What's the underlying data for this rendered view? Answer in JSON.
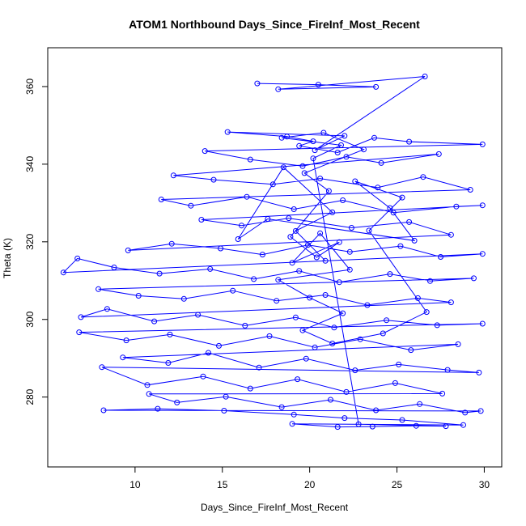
{
  "chart_data": {
    "type": "scatter",
    "title": "ATOM1 Northbound Days_Since_FireInf_Most_Recent",
    "xlabel": "Days_Since_FireInf_Most_Recent",
    "ylabel": "Theta (K)",
    "xlim": [
      5,
      31
    ],
    "ylim": [
      262,
      370
    ],
    "xticks": [
      10,
      15,
      20,
      25,
      30
    ],
    "yticks": [
      280,
      300,
      320,
      340,
      360
    ],
    "grid": false,
    "legend": "none",
    "series_style": "points connected by lines",
    "color": "#0000ff",
    "series": [
      {
        "values_note": "",
        "points": [
          [
            17.0,
            360.8
          ],
          [
            20.5,
            360.5
          ],
          [
            23.8,
            359.9
          ],
          [
            18.2,
            359.3
          ],
          [
            26.6,
            362.6
          ],
          [
            20.3,
            343.6
          ],
          [
            22.0,
            347.3
          ],
          [
            15.3,
            348.3
          ],
          [
            18.7,
            347.1
          ],
          [
            20.2,
            345.9
          ],
          [
            19.4,
            344.7
          ],
          [
            21.6,
            343.0
          ],
          [
            23.7,
            346.8
          ],
          [
            25.7,
            345.8
          ],
          [
            29.9,
            345.1
          ],
          [
            14.0,
            343.4
          ],
          [
            16.6,
            341.2
          ],
          [
            19.6,
            339.5
          ],
          [
            22.1,
            341.9
          ],
          [
            24.1,
            340.3
          ],
          [
            27.4,
            342.6
          ],
          [
            12.2,
            337.1
          ],
          [
            14.5,
            336.0
          ],
          [
            17.9,
            334.8
          ],
          [
            20.6,
            336.3
          ],
          [
            23.9,
            334.0
          ],
          [
            26.5,
            336.7
          ],
          [
            29.2,
            333.4
          ],
          [
            11.5,
            330.9
          ],
          [
            13.2,
            329.3
          ],
          [
            16.4,
            331.6
          ],
          [
            19.1,
            328.4
          ],
          [
            21.9,
            330.7
          ],
          [
            24.8,
            327.5
          ],
          [
            28.4,
            329.1
          ],
          [
            29.9,
            329.4
          ],
          [
            13.8,
            325.7
          ],
          [
            16.1,
            324.2
          ],
          [
            18.8,
            326.1
          ],
          [
            22.4,
            323.6
          ],
          [
            25.7,
            325.1
          ],
          [
            28.1,
            321.8
          ],
          [
            9.6,
            317.8
          ],
          [
            12.1,
            319.5
          ],
          [
            14.9,
            318.3
          ],
          [
            17.3,
            316.7
          ],
          [
            19.9,
            319.2
          ],
          [
            22.3,
            317.4
          ],
          [
            25.2,
            318.9
          ],
          [
            27.5,
            316.1
          ],
          [
            29.9,
            316.9
          ],
          [
            5.9,
            312.1
          ],
          [
            6.7,
            315.7
          ],
          [
            8.8,
            313.4
          ],
          [
            11.4,
            311.8
          ],
          [
            14.3,
            313.0
          ],
          [
            16.8,
            310.4
          ],
          [
            19.4,
            312.5
          ],
          [
            21.7,
            309.6
          ],
          [
            24.6,
            311.7
          ],
          [
            26.9,
            309.9
          ],
          [
            29.4,
            310.6
          ],
          [
            7.9,
            307.8
          ],
          [
            10.2,
            306.1
          ],
          [
            12.8,
            305.3
          ],
          [
            15.6,
            307.4
          ],
          [
            18.1,
            304.8
          ],
          [
            20.9,
            306.3
          ],
          [
            23.3,
            303.7
          ],
          [
            26.2,
            305.5
          ],
          [
            28.1,
            304.4
          ],
          [
            6.9,
            300.6
          ],
          [
            8.4,
            302.7
          ],
          [
            11.1,
            299.5
          ],
          [
            13.6,
            301.2
          ],
          [
            16.3,
            298.4
          ],
          [
            19.2,
            300.5
          ],
          [
            21.4,
            297.9
          ],
          [
            24.4,
            299.8
          ],
          [
            27.3,
            298.5
          ],
          [
            29.9,
            298.9
          ],
          [
            6.8,
            296.7
          ],
          [
            9.5,
            294.6
          ],
          [
            12.0,
            296.1
          ],
          [
            14.8,
            293.2
          ],
          [
            17.7,
            295.7
          ],
          [
            20.3,
            292.8
          ],
          [
            22.9,
            294.9
          ],
          [
            25.8,
            292.1
          ],
          [
            28.5,
            293.6
          ],
          [
            9.3,
            290.2
          ],
          [
            11.9,
            288.8
          ],
          [
            14.2,
            291.4
          ],
          [
            17.1,
            287.6
          ],
          [
            19.8,
            289.9
          ],
          [
            22.6,
            286.9
          ],
          [
            25.1,
            288.4
          ],
          [
            27.9,
            287.0
          ],
          [
            29.7,
            286.3
          ],
          [
            8.1,
            287.7
          ],
          [
            10.7,
            283.1
          ],
          [
            13.9,
            285.3
          ],
          [
            16.6,
            282.2
          ],
          [
            19.3,
            284.6
          ],
          [
            22.1,
            281.3
          ],
          [
            24.9,
            283.6
          ],
          [
            27.6,
            280.9
          ],
          [
            10.8,
            280.8
          ],
          [
            12.4,
            278.6
          ],
          [
            15.2,
            280.1
          ],
          [
            18.4,
            277.4
          ],
          [
            21.2,
            279.3
          ],
          [
            23.8,
            276.6
          ],
          [
            26.3,
            278.2
          ],
          [
            28.9,
            276.0
          ],
          [
            29.8,
            276.4
          ],
          [
            8.2,
            276.6
          ],
          [
            11.3,
            277.0
          ],
          [
            15.1,
            276.5
          ],
          [
            19.1,
            275.5
          ],
          [
            22.0,
            274.6
          ],
          [
            25.3,
            274.1
          ],
          [
            28.8,
            272.8
          ],
          [
            19.0,
            273.1
          ],
          [
            21.6,
            272.3
          ],
          [
            23.6,
            272.4
          ],
          [
            26.1,
            272.6
          ],
          [
            27.8,
            272.5
          ],
          [
            22.8,
            273.0
          ],
          [
            20.2,
            341.5
          ],
          [
            21.8,
            344.9
          ],
          [
            18.4,
            346.8
          ],
          [
            20.8,
            348.1
          ],
          [
            23.1,
            343.8
          ],
          [
            19.7,
            337.7
          ],
          [
            21.1,
            333.1
          ],
          [
            18.9,
            321.3
          ],
          [
            20.4,
            316.0
          ],
          [
            21.7,
            319.9
          ],
          [
            19.0,
            314.6
          ],
          [
            20.6,
            322.2
          ],
          [
            22.3,
            312.8
          ],
          [
            18.2,
            310.2
          ],
          [
            20.0,
            305.6
          ],
          [
            21.9,
            301.6
          ],
          [
            19.6,
            297.2
          ],
          [
            21.3,
            293.8
          ],
          [
            24.2,
            296.4
          ],
          [
            26.7,
            301.9
          ],
          [
            23.4,
            322.9
          ],
          [
            25.3,
            331.4
          ],
          [
            22.6,
            335.6
          ],
          [
            24.6,
            328.7
          ],
          [
            26.0,
            320.3
          ],
          [
            17.6,
            325.9
          ],
          [
            15.9,
            320.7
          ],
          [
            18.5,
            339.2
          ],
          [
            21.3,
            327.6
          ],
          [
            19.2,
            322.8
          ],
          [
            20.9,
            315.1
          ]
        ]
      }
    ]
  }
}
